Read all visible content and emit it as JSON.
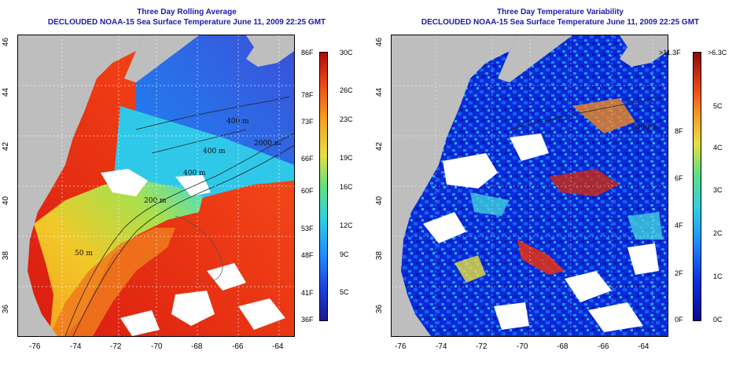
{
  "left": {
    "title": "Three Day Rolling Average",
    "subtitle": "DECLOUDED NOAA-15 Sea Surface Temperature June 11, 2009 22:25 GMT",
    "colorbar": {
      "f_labels": [
        "86F",
        "78F",
        "73F",
        "66F",
        "60F",
        "53F",
        "48F",
        "41F",
        "36F"
      ],
      "c_labels": [
        "30C",
        "26C",
        "23C",
        "19C",
        "16C",
        "12C",
        "9C",
        "5C"
      ]
    },
    "contours": [
      "400 m",
      "2000 m",
      "200 m",
      "50 m",
      "400 m",
      "400 m"
    ]
  },
  "right": {
    "title": "Three Day Temperature Variability",
    "subtitle": "DECLOUDED NOAA-15 Sea Surface Temperature June 11, 2009 22:25 GMT",
    "colorbar": {
      "f_labels": [
        ">11.3F",
        "8F",
        "6F",
        "4F",
        "2F",
        "0F"
      ],
      "c_labels": [
        ">6.3C",
        "5C",
        "4C",
        "3C",
        "2C",
        "1C",
        "0C"
      ]
    },
    "contours": [
      "2000 m"
    ]
  },
  "axes": {
    "x_ticks": [
      "-76",
      "-74",
      "-72",
      "-70",
      "-68",
      "-66",
      "-64"
    ],
    "y_ticks": [
      "46",
      "44",
      "42",
      "40",
      "38",
      "36"
    ]
  },
  "colors": {
    "land": "#bebebe",
    "cloud": "#ffffff",
    "title": "#1a1aaa"
  }
}
